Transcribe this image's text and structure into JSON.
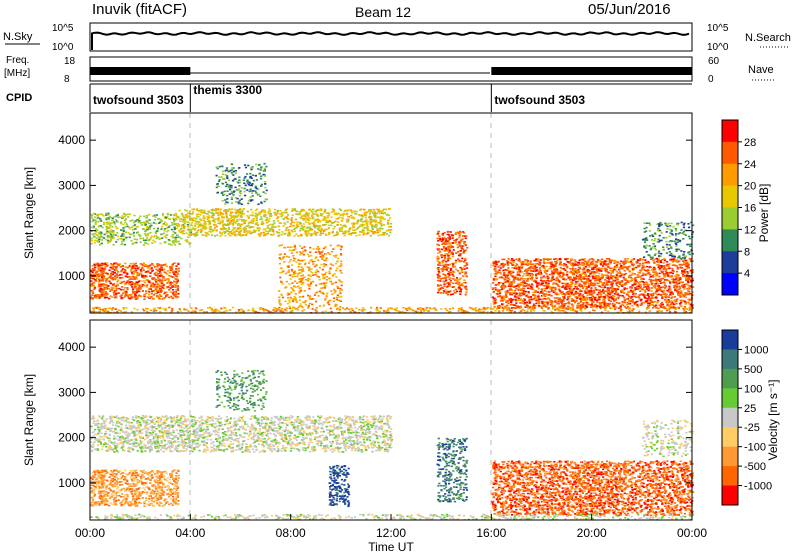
{
  "header": {
    "title": "Inuvik (fitACF)",
    "beam": "Beam 12",
    "date": "05/Jun/2016"
  },
  "top_panels": {
    "nsky_label": "N.Sky",
    "nsky_ticks": [
      "10^5",
      "10^0"
    ],
    "nsearch_label": "N.Search",
    "nsearch_ticks": [
      "10^5",
      "10^0"
    ],
    "freq_label_1": "Freq.",
    "freq_label_2": "[MHz]",
    "freq_ticks": [
      "18",
      "8"
    ],
    "nave_label": "Nave",
    "nave_ticks": [
      "60",
      "0"
    ],
    "cpid_label": "CPID",
    "cpid_segments": [
      {
        "name": "twofsound 3503",
        "start": 0,
        "end": 4
      },
      {
        "name": "themis 3300",
        "start": 4,
        "end": 16
      },
      {
        "name": "twofsound 3503",
        "start": 16,
        "end": 24
      }
    ],
    "freq_active_intervals": [
      [
        0,
        4
      ],
      [
        16,
        24
      ]
    ]
  },
  "chart_data": [
    {
      "type": "heatmap",
      "title": "",
      "xlabel": "",
      "ylabel": "Slant Range [km]",
      "xlim": [
        0,
        24
      ],
      "ylim": [
        180,
        4600
      ],
      "yticks": [
        "1000",
        "2000",
        "3000",
        "4000"
      ],
      "colorbar": {
        "label": "Power [dB]",
        "ticks": [
          "28",
          "24",
          "20",
          "16",
          "12",
          "8",
          "4"
        ],
        "colors": [
          "#ff0000",
          "#ff5a00",
          "#ff9a00",
          "#e8c800",
          "#9acd32",
          "#2e8b57",
          "#1e3c9a",
          "#0000ff"
        ]
      }
    },
    {
      "type": "heatmap",
      "title": "",
      "xlabel": "Time UT",
      "ylabel": "Slant Range [km]",
      "xlim": [
        0,
        24
      ],
      "ylim": [
        180,
        4600
      ],
      "xticks": [
        "00:00",
        "04:00",
        "08:00",
        "12:00",
        "16:00",
        "20:00",
        "00:00"
      ],
      "yticks": [
        "1000",
        "2000",
        "3000",
        "4000"
      ],
      "colorbar": {
        "label": "Velocity [m s⁻¹]",
        "ticks": [
          "1000",
          "500",
          "100",
          "25",
          "-25",
          "-100",
          "-500",
          "-1000"
        ],
        "colors": [
          "#1a3c9a",
          "#3c7a7a",
          "#4f9e4f",
          "#66cc33",
          "#c8c8c8",
          "#ffcc66",
          "#ff9933",
          "#ff6600",
          "#ff0000"
        ]
      }
    }
  ]
}
